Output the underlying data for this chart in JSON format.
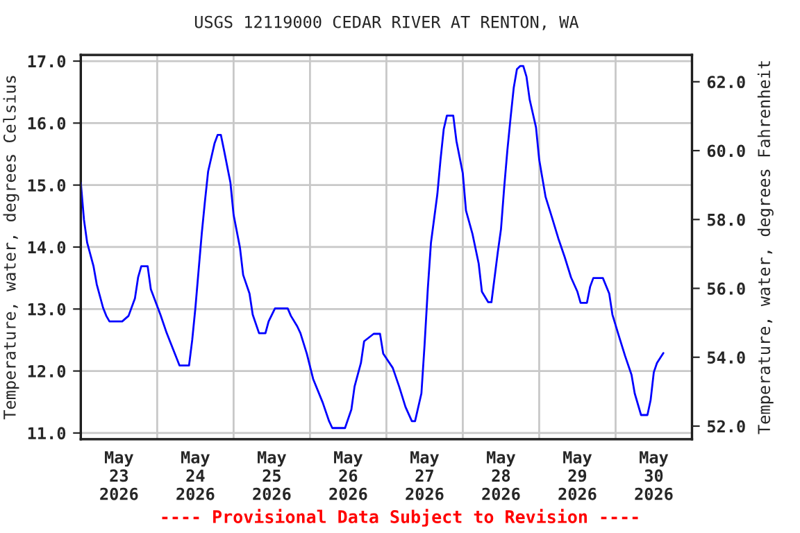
{
  "chart_data": {
    "type": "line",
    "title": "USGS 12119000 CEDAR RIVER AT RENTON, WA",
    "ylabel": "Temperature, water, degrees Celsius",
    "y2label": "Temperature, water, degrees Fahrenheit",
    "annotations": [
      "---- Provisional Data Subject to Revision ----"
    ],
    "x": [
      "2026-05-23T00:00",
      "2026-05-23T01:00",
      "2026-05-23T02:00",
      "2026-05-23T04:00",
      "2026-05-23T05:00",
      "2026-05-23T07:00",
      "2026-05-23T08:00",
      "2026-05-23T09:00",
      "2026-05-23T13:00",
      "2026-05-23T15:00",
      "2026-05-23T17:00",
      "2026-05-23T18:00",
      "2026-05-23T19:00",
      "2026-05-23T21:00",
      "2026-05-23T22:00",
      "2026-05-24T01:00",
      "2026-05-24T03:00",
      "2026-05-24T05:00",
      "2026-05-24T07:00",
      "2026-05-24T10:00",
      "2026-05-24T11:00",
      "2026-05-24T12:00",
      "2026-05-24T13:00",
      "2026-05-24T14:00",
      "2026-05-24T15:00",
      "2026-05-24T16:00",
      "2026-05-24T18:00",
      "2026-05-24T19:00",
      "2026-05-24T20:00",
      "2026-05-24T21:00",
      "2026-05-24T23:00",
      "2026-05-25T00:00",
      "2026-05-25T02:00",
      "2026-05-25T03:00",
      "2026-05-25T05:00",
      "2026-05-25T06:00",
      "2026-05-25T08:00",
      "2026-05-25T10:00",
      "2026-05-25T11:00",
      "2026-05-25T13:00",
      "2026-05-25T17:00",
      "2026-05-25T18:00",
      "2026-05-25T20:00",
      "2026-05-25T21:00",
      "2026-05-25T23:00",
      "2026-05-26T01:00",
      "2026-05-26T04:00",
      "2026-05-26T06:00",
      "2026-05-26T07:00",
      "2026-05-26T11:00",
      "2026-05-26T13:00",
      "2026-05-26T14:00",
      "2026-05-26T16:00",
      "2026-05-26T17:00",
      "2026-05-26T20:00",
      "2026-05-26T22:00",
      "2026-05-26T23:00",
      "2026-05-27T02:00",
      "2026-05-27T04:00",
      "2026-05-27T06:00",
      "2026-05-27T08:00",
      "2026-05-27T09:00",
      "2026-05-27T11:00",
      "2026-05-27T12:00",
      "2026-05-27T13:00",
      "2026-05-27T14:00",
      "2026-05-27T16:00",
      "2026-05-27T17:00",
      "2026-05-27T18:00",
      "2026-05-27T19:00",
      "2026-05-27T21:00",
      "2026-05-27T22:00",
      "2026-05-28T00:00",
      "2026-05-28T01:00",
      "2026-05-28T03:00",
      "2026-05-28T05:00",
      "2026-05-28T06:00",
      "2026-05-28T08:00",
      "2026-05-28T09:00",
      "2026-05-28T11:00",
      "2026-05-28T12:00",
      "2026-05-28T13:00",
      "2026-05-28T14:00",
      "2026-05-28T15:00",
      "2026-05-28T16:00",
      "2026-05-28T17:00",
      "2026-05-28T18:00",
      "2026-05-28T19:00",
      "2026-05-28T20:00",
      "2026-05-28T21:00",
      "2026-05-28T23:00",
      "2026-05-29T00:00",
      "2026-05-29T02:00",
      "2026-05-29T04:00",
      "2026-05-29T06:00",
      "2026-05-29T08:00",
      "2026-05-29T10:00",
      "2026-05-29T12:00",
      "2026-05-29T13:00",
      "2026-05-29T15:00",
      "2026-05-29T16:00",
      "2026-05-29T17:00",
      "2026-05-29T20:00",
      "2026-05-29T22:00",
      "2026-05-29T23:00",
      "2026-05-30T01:00",
      "2026-05-30T03:00",
      "2026-05-30T05:00",
      "2026-05-30T06:00",
      "2026-05-30T08:00",
      "2026-05-30T10:00",
      "2026-05-30T11:00",
      "2026-05-30T12:00",
      "2026-05-30T13:00",
      "2026-05-30T15:00"
    ],
    "series": [
      {
        "color": "#0000ff",
        "values": [
          15.04,
          14.44,
          14.07,
          13.69,
          13.4,
          13.02,
          12.89,
          12.8,
          12.8,
          12.89,
          13.17,
          13.51,
          13.69,
          13.69,
          13.32,
          12.91,
          12.61,
          12.35,
          12.09,
          12.09,
          12.5,
          13.02,
          13.62,
          14.22,
          14.74,
          15.22,
          15.67,
          15.81,
          15.81,
          15.56,
          15.04,
          14.52,
          13.99,
          13.55,
          13.25,
          12.91,
          12.61,
          12.61,
          12.8,
          13.01,
          13.01,
          12.89,
          12.72,
          12.61,
          12.28,
          11.87,
          11.49,
          11.19,
          11.08,
          11.08,
          11.38,
          11.75,
          12.13,
          12.48,
          12.6,
          12.6,
          12.28,
          12.05,
          11.75,
          11.42,
          11.19,
          11.19,
          11.64,
          12.43,
          13.32,
          14.07,
          14.85,
          15.41,
          15.9,
          16.12,
          16.12,
          15.71,
          15.19,
          14.59,
          14.22,
          13.73,
          13.28,
          13.11,
          13.11,
          13.92,
          14.29,
          14.96,
          15.56,
          16.08,
          16.57,
          16.87,
          16.92,
          16.92,
          16.75,
          16.38,
          15.93,
          15.41,
          14.81,
          14.48,
          14.14,
          13.84,
          13.51,
          13.28,
          13.1,
          13.1,
          13.36,
          13.5,
          13.5,
          13.25,
          12.91,
          12.57,
          12.24,
          11.94,
          11.64,
          11.29,
          11.29,
          11.53,
          11.98,
          12.13,
          12.29
        ]
      }
    ],
    "xlim": [
      "2026-05-23T00:00",
      "2026-05-31T00:00"
    ],
    "xticks": [
      {
        "value": "2026-05-24T00:00",
        "label": null
      },
      {
        "value": "2026-05-25T00:00",
        "label": null
      },
      {
        "value": "2026-05-26T00:00",
        "label": null
      },
      {
        "value": "2026-05-27T00:00",
        "label": null
      },
      {
        "value": "2026-05-28T00:00",
        "label": null
      },
      {
        "value": "2026-05-29T00:00",
        "label": null
      },
      {
        "value": "2026-05-30T00:00",
        "label": null
      },
      {
        "value": "2026-05-23T12:00",
        "label": "May\n23\n2026"
      },
      {
        "value": "2026-05-24T12:00",
        "label": "May\n24\n2026"
      },
      {
        "value": "2026-05-25T12:00",
        "label": "May\n25\n2026"
      },
      {
        "value": "2026-05-26T12:00",
        "label": "May\n26\n2026"
      },
      {
        "value": "2026-05-27T12:00",
        "label": "May\n27\n2026"
      },
      {
        "value": "2026-05-28T12:00",
        "label": "May\n28\n2026"
      },
      {
        "value": "2026-05-29T12:00",
        "label": "May\n29\n2026"
      },
      {
        "value": "2026-05-30T12:00",
        "label": "May\n30\n2026"
      }
    ],
    "ylim": [
      10.9,
      17.1
    ],
    "yticks": [
      {
        "value": 11,
        "label": "11.0"
      },
      {
        "value": 12,
        "label": "12.0"
      },
      {
        "value": 13,
        "label": "13.0"
      },
      {
        "value": 14,
        "label": "14.0"
      },
      {
        "value": 15,
        "label": "15.0"
      },
      {
        "value": 16,
        "label": "16.0"
      },
      {
        "value": 17,
        "label": "17.0"
      }
    ],
    "y2lim": [
      51.62,
      62.78
    ],
    "y2ticks": [
      {
        "value": 52,
        "label": "52.0"
      },
      {
        "value": 54,
        "label": "54.0"
      },
      {
        "value": 56,
        "label": "56.0"
      },
      {
        "value": 58,
        "label": "58.0"
      },
      {
        "value": 60,
        "label": "60.0"
      },
      {
        "value": 62,
        "label": "62.0"
      }
    ],
    "grid": true,
    "marker": "none",
    "line_style": "solid"
  }
}
